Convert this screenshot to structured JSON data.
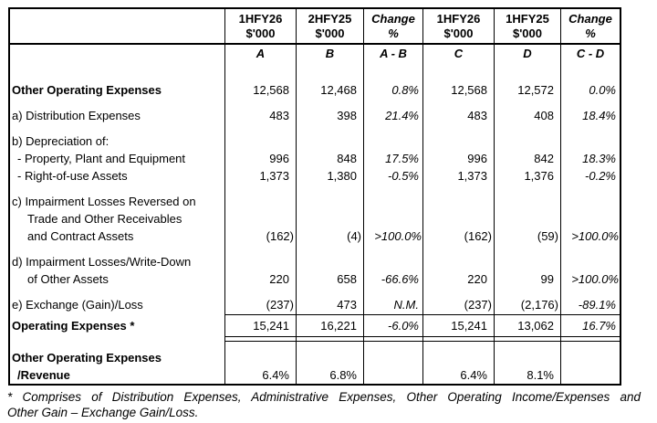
{
  "table": {
    "header": {
      "corner": "",
      "columns": [
        {
          "period": "1HFY26",
          "unit": "$'000",
          "key": "A",
          "italic": false
        },
        {
          "period": "2HFY25",
          "unit": "$'000",
          "key": "B",
          "italic": false
        },
        {
          "period": "Change",
          "unit": "%",
          "key": "A - B",
          "italic": true
        },
        {
          "period": "1HFY26",
          "unit": "$'000",
          "key": "C",
          "italic": false
        },
        {
          "period": "1HFY25",
          "unit": "$'000",
          "key": "D",
          "italic": false
        },
        {
          "period": "Change",
          "unit": "%",
          "key": "C - D",
          "italic": true
        }
      ]
    },
    "rows": [
      {
        "name": "other-operating-expenses",
        "label": "Other Operating Expenses",
        "bold": true,
        "indent": 0,
        "style": "lead",
        "values": [
          "12,568",
          "12,468",
          "0.8%",
          "12,568",
          "12,572",
          "0.0%"
        ]
      },
      {
        "name": "distribution-expenses",
        "label": "a) Distribution Expenses",
        "bold": false,
        "indent": 0,
        "style": "main",
        "values": [
          "483",
          "398",
          "21.4%",
          "483",
          "408",
          "18.4%"
        ]
      },
      {
        "name": "depreciation-of",
        "label": "b) Depreciation of:",
        "bold": false,
        "indent": 0,
        "style": "main",
        "values": null
      },
      {
        "name": "property-plant-equipment",
        "label": "- Property, Plant and Equipment",
        "bold": false,
        "indent": 1,
        "style": "sub",
        "values": [
          "996",
          "848",
          "17.5%",
          "996",
          "842",
          "18.3%"
        ]
      },
      {
        "name": "right-of-use-assets",
        "label": "- Right-of-use Assets",
        "bold": false,
        "indent": 1,
        "style": "sub",
        "values": [
          "1,373",
          "1,380",
          "-0.5%",
          "1,373",
          "1,376",
          "-0.2%"
        ]
      },
      {
        "name": "impairment-reversed-line1",
        "label": "c) Impairment Losses Reversed on",
        "bold": false,
        "indent": 0,
        "style": "main",
        "values": null
      },
      {
        "name": "impairment-reversed-line2",
        "label": "Trade and Other Receivables",
        "bold": false,
        "indent": 2,
        "style": "sub",
        "values": null
      },
      {
        "name": "impairment-reversed-line3",
        "label": "and Contract Assets",
        "bold": false,
        "indent": 2,
        "style": "sub",
        "values": [
          "(162)",
          "(4)",
          ">100.0%",
          "(162)",
          "(59)",
          ">100.0%"
        ]
      },
      {
        "name": "impairment-writedown-line1",
        "label": "d) Impairment Losses/Write-Down",
        "bold": false,
        "indent": 0,
        "style": "main",
        "values": null
      },
      {
        "name": "impairment-writedown-line2",
        "label": "of Other Assets",
        "bold": false,
        "indent": 2,
        "style": "sub",
        "values": [
          "220",
          "658",
          "-66.6%",
          "220",
          "99",
          ">100.0%"
        ]
      },
      {
        "name": "exchange-gain-loss",
        "label": "e) Exchange (Gain)/Loss",
        "bold": false,
        "indent": 0,
        "style": "main",
        "values": [
          "(237)",
          "473",
          "N.M.",
          "(237)",
          "(2,176)",
          "-89.1%"
        ]
      },
      {
        "name": "operating-expenses-total",
        "label": "Operating Expenses *",
        "bold": true,
        "indent": 0,
        "style": "total",
        "values": [
          "15,241",
          "16,221",
          "-6.0%",
          "15,241",
          "13,062",
          "16.7%"
        ]
      },
      {
        "name": "total-underline-spacer",
        "label": "",
        "bold": false,
        "indent": 0,
        "style": "spacer",
        "values": null
      },
      {
        "name": "ooe-revenue-line1",
        "label": "Other Operating Expenses",
        "bold": true,
        "indent": 0,
        "style": "rev1",
        "values": null
      },
      {
        "name": "ooe-revenue-line2",
        "label": "/Revenue",
        "bold": true,
        "indent": 1,
        "style": "rev2",
        "values": [
          "6.4%",
          "6.8%",
          "",
          "6.4%",
          "8.1%",
          ""
        ]
      }
    ],
    "footnote_lines": [
      "* Comprises of Distribution Expenses, Administrative Expenses, Other Operating Income/Expenses and",
      "Other Gain – Exchange Gain/Loss."
    ]
  }
}
